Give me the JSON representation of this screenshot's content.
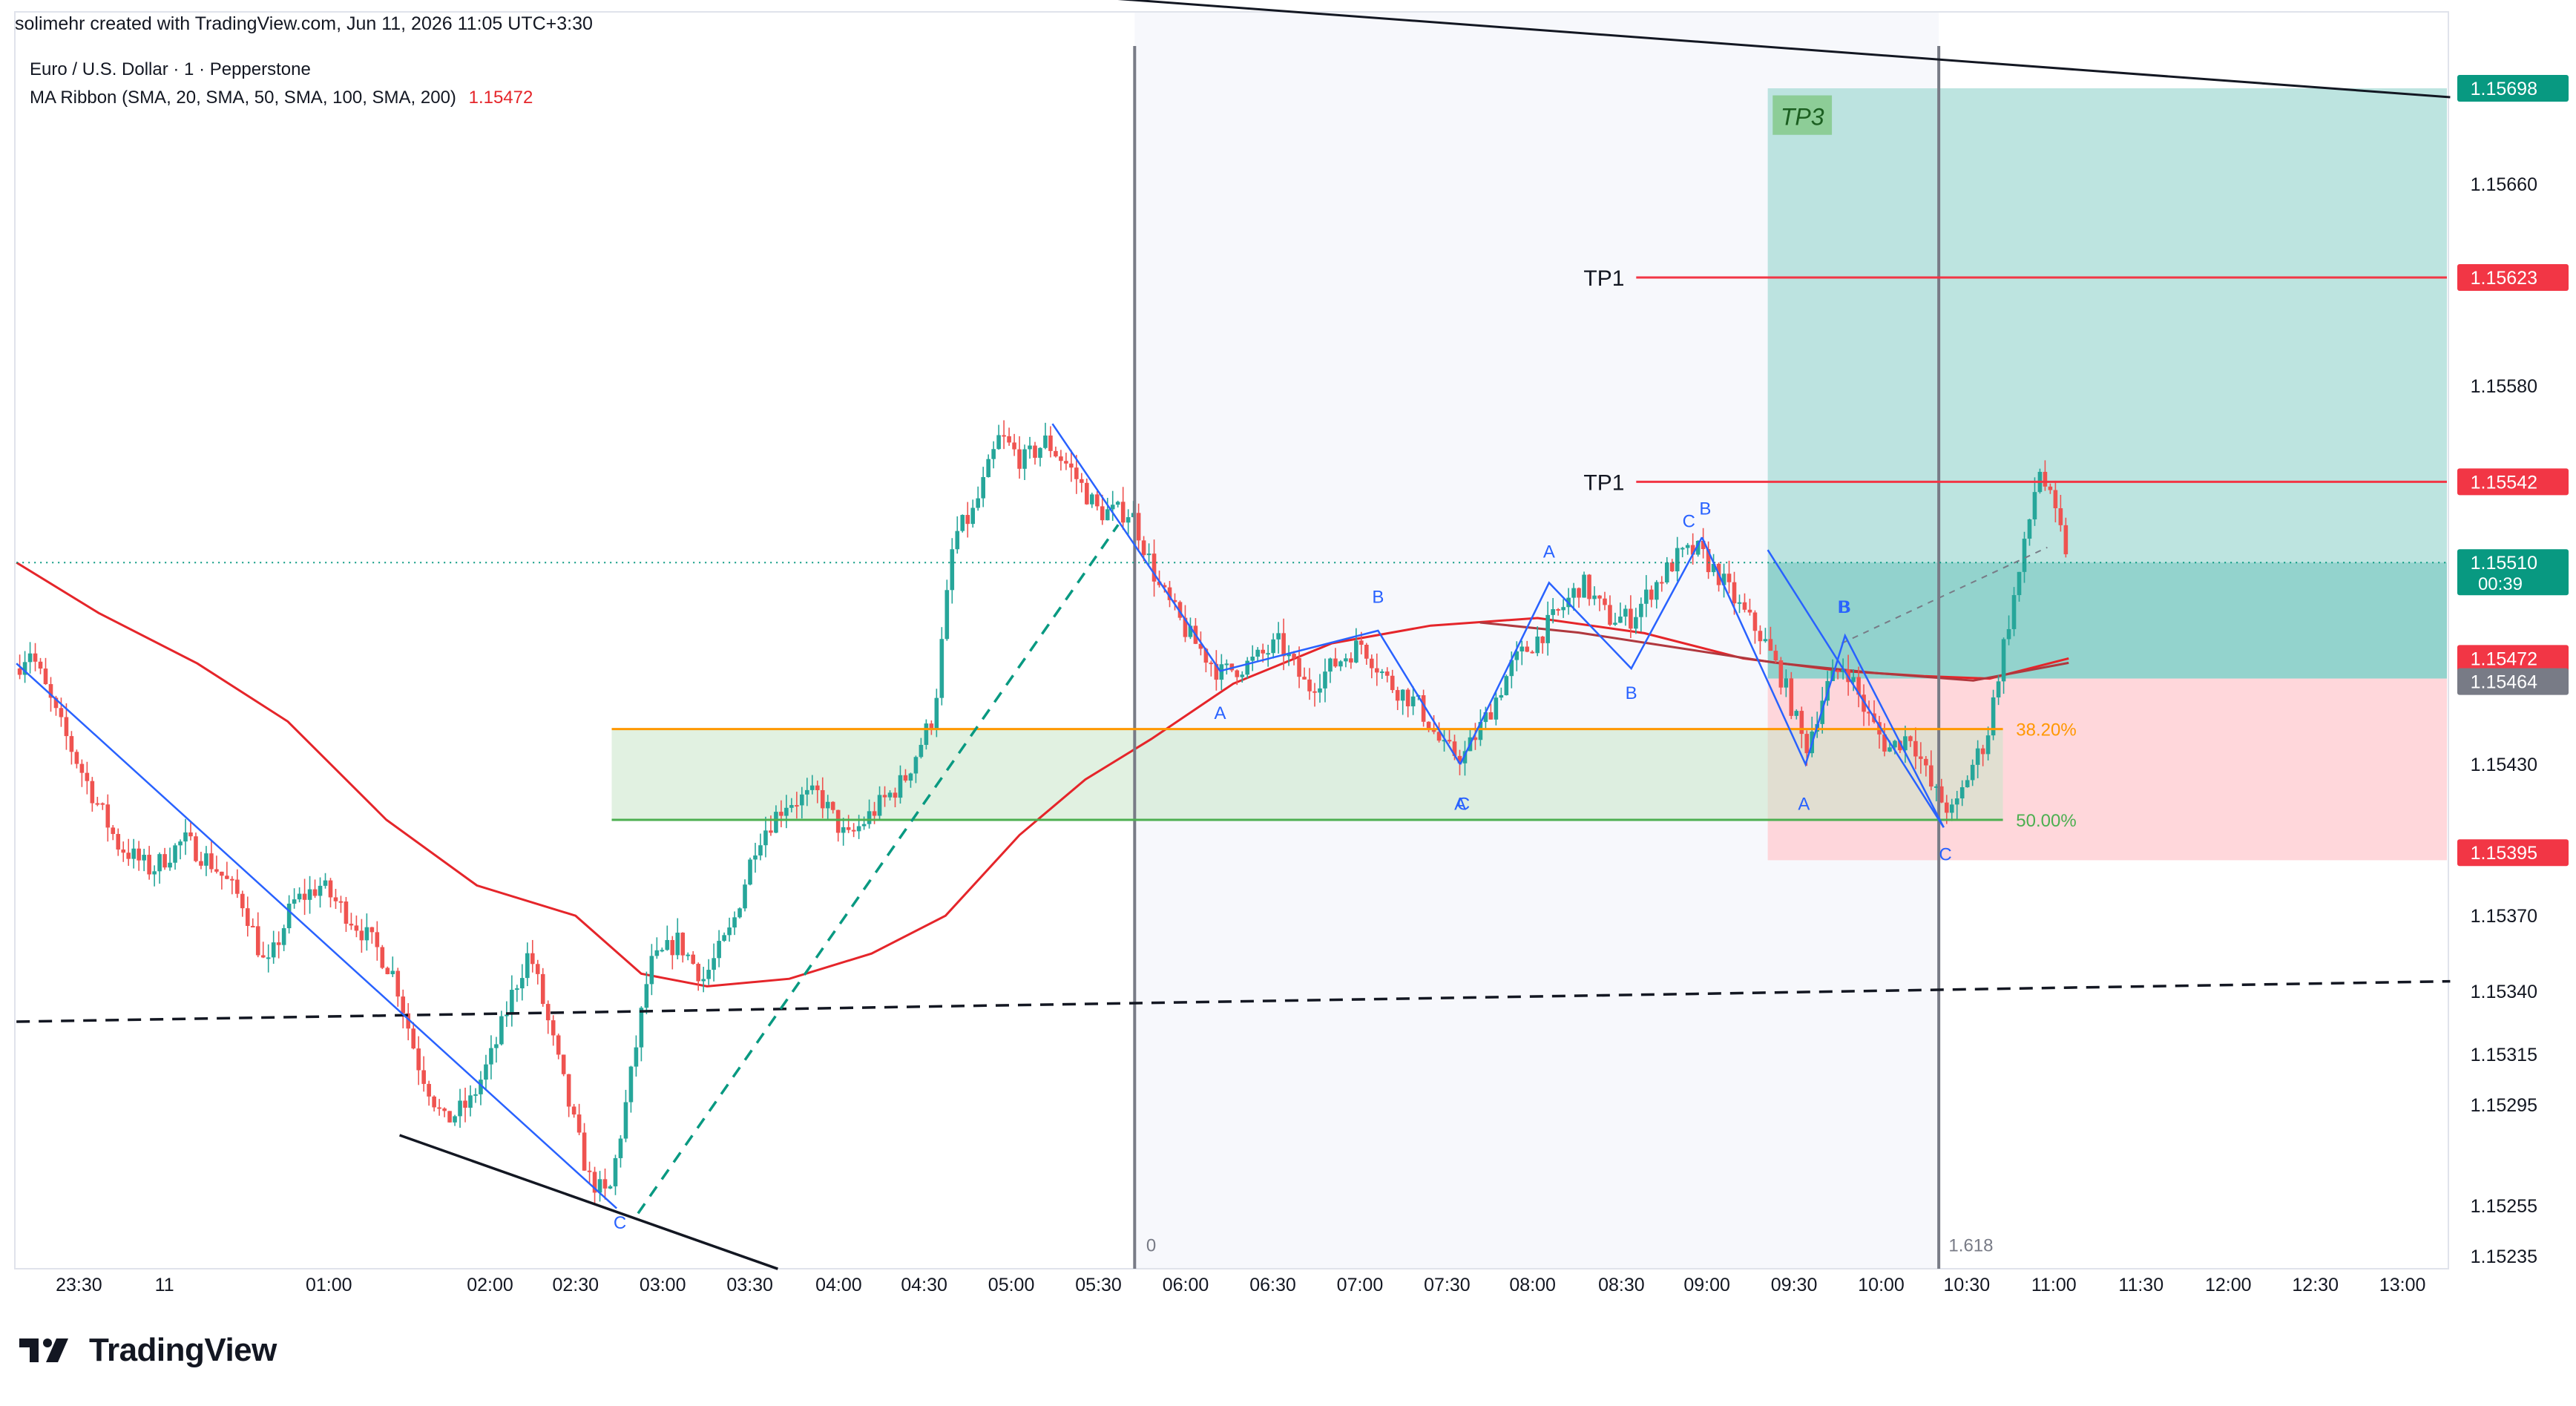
{
  "header": {
    "credit": "solimehr created with TradingView.com, Jun 11, 2026 11:05 UTC+3:30",
    "symbol": "Euro / U.S. Dollar · 1 · Pepperstone",
    "indicator": "MA Ribbon (SMA, 20, SMA, 50, SMA, 100, SMA, 200)",
    "indicator_value": "1.15472"
  },
  "footer": {
    "brand": "TradingView"
  },
  "colors": {
    "up": "#26a69a",
    "down": "#ef5350",
    "ma": "#e5252a",
    "ma200": "#b0383e",
    "wave": "#2962ff",
    "fib_382": "#ff9800",
    "fib_50": "#4caf50",
    "target_zone": "#b2dfdb",
    "stop_zone": "#ffcdd2",
    "tp_line": "#f23645",
    "last_price": "#089981",
    "axis_text": "#131722"
  },
  "chart_data": {
    "type": "candlestick",
    "symbol": "Euro / U.S. Dollar",
    "timeframe": "1",
    "y_axis": {
      "ylim": [
        1.15224,
        1.15712
      ],
      "tick_labels": [
        "1.15660",
        "1.15580",
        "1.15430",
        "1.15370",
        "1.15340",
        "1.15315",
        "1.15295",
        "1.15255",
        "1.15235"
      ]
    },
    "x_axis": {
      "tick_labels": [
        "23:30",
        "11",
        "01:00",
        "02:00",
        "02:30",
        "03:00",
        "03:30",
        "04:00",
        "04:30",
        "05:00",
        "05:30",
        "06:00",
        "06:30",
        "07:00",
        "07:30",
        "08:00",
        "08:30",
        "09:00",
        "09:30",
        "10:00",
        "10:30",
        "11:00",
        "11:30",
        "12:00",
        "12:30",
        "13:00"
      ]
    },
    "price_labels": [
      {
        "value": "1.15698",
        "kind": "tp3"
      },
      {
        "value": "1.15623",
        "kind": "tp"
      },
      {
        "value": "1.15542",
        "kind": "tp"
      },
      {
        "value": "1.15510",
        "kind": "last",
        "countdown": "00:39"
      },
      {
        "value": "1.15472",
        "kind": "ma"
      },
      {
        "value": "1.15464",
        "kind": "entry"
      },
      {
        "value": "1.15395",
        "kind": "stop"
      }
    ],
    "annotations": {
      "tp3": "TP3",
      "tp_lines": [
        {
          "label": "TP1",
          "price": 1.15623
        },
        {
          "label": "TP1",
          "price": 1.15542
        }
      ],
      "fib_levels": [
        {
          "label": "38.20%",
          "price": 1.15444
        },
        {
          "label": "50.00%",
          "price": 1.15408
        }
      ],
      "fib_extension": {
        "start": "0",
        "end": "1.618"
      },
      "wave_labels": [
        "C",
        "A",
        "B",
        "A",
        "C",
        "A",
        "B",
        "B",
        "C",
        "B",
        "B",
        "A",
        "C"
      ]
    },
    "position": {
      "entry": 1.15464,
      "target": 1.15698,
      "stop": 1.15395
    },
    "candle_path": [
      [
        0,
        1.15458
      ],
      [
        18,
        1.15476
      ],
      [
        35,
        1.15448
      ],
      [
        55,
        1.1542
      ],
      [
        72,
        1.15398
      ],
      [
        92,
        1.15388
      ],
      [
        112,
        1.154
      ],
      [
        130,
        1.1539
      ],
      [
        148,
        1.15375
      ],
      [
        162,
        1.15348
      ],
      [
        178,
        1.15375
      ],
      [
        195,
        1.15382
      ],
      [
        212,
        1.1537
      ],
      [
        228,
        1.15358
      ],
      [
        240,
        1.15346
      ],
      [
        254,
        1.15312
      ],
      [
        270,
        1.15288
      ],
      [
        286,
        1.15296
      ],
      [
        300,
        1.15316
      ],
      [
        312,
        1.1534
      ],
      [
        322,
        1.15356
      ],
      [
        334,
        1.15326
      ],
      [
        346,
        1.15295
      ],
      [
        358,
        1.15266
      ],
      [
        370,
        1.15258
      ],
      [
        382,
        1.153
      ],
      [
        395,
        1.1535
      ],
      [
        412,
        1.1536
      ],
      [
        428,
        1.15345
      ],
      [
        445,
        1.15365
      ],
      [
        460,
        1.154
      ],
      [
        478,
        1.15415
      ],
      [
        498,
        1.15418
      ],
      [
        515,
        1.154
      ],
      [
        532,
        1.15412
      ],
      [
        550,
        1.15424
      ],
      [
        568,
        1.1545
      ],
      [
        580,
        1.1552
      ],
      [
        592,
        1.1553
      ],
      [
        608,
        1.1556
      ],
      [
        622,
        1.1555
      ],
      [
        636,
        1.15558
      ],
      [
        650,
        1.15548
      ],
      [
        668,
        1.1553
      ],
      [
        688,
        1.1553
      ],
      [
        705,
        1.155
      ],
      [
        722,
        1.15482
      ],
      [
        742,
        1.15466
      ],
      [
        760,
        1.1547
      ],
      [
        778,
        1.15478
      ],
      [
        795,
        1.1546
      ],
      [
        812,
        1.1547
      ],
      [
        828,
        1.15478
      ],
      [
        845,
        1.15462
      ],
      [
        862,
        1.15454
      ],
      [
        878,
        1.15436
      ],
      [
        890,
        1.15433
      ],
      [
        905,
        1.1545
      ],
      [
        920,
        1.1547
      ],
      [
        935,
        1.1548
      ],
      [
        950,
        1.15492
      ],
      [
        962,
        1.15502
      ],
      [
        978,
        1.15488
      ],
      [
        992,
        1.15488
      ],
      [
        1005,
        1.155
      ],
      [
        1020,
        1.15512
      ],
      [
        1032,
        1.15515
      ],
      [
        1045,
        1.15505
      ],
      [
        1058,
        1.15492
      ],
      [
        1072,
        1.1548
      ],
      [
        1085,
        1.15462
      ],
      [
        1098,
        1.15436
      ],
      [
        1110,
        1.1546
      ],
      [
        1122,
        1.1547
      ],
      [
        1135,
        1.1545
      ],
      [
        1148,
        1.15436
      ],
      [
        1162,
        1.15442
      ],
      [
        1175,
        1.1542
      ],
      [
        1188,
        1.1541
      ],
      [
        1198,
        1.15428
      ],
      [
        1208,
        1.1544
      ],
      [
        1218,
        1.15476
      ],
      [
        1230,
        1.15512
      ],
      [
        1240,
        1.15548
      ],
      [
        1250,
        1.15528
      ],
      [
        1258,
        1.15512
      ]
    ],
    "ma_fast": [
      [
        10,
        1.1551
      ],
      [
        60,
        1.1549
      ],
      [
        120,
        1.1547
      ],
      [
        175,
        1.15447
      ],
      [
        235,
        1.15408
      ],
      [
        290,
        1.15382
      ],
      [
        350,
        1.1537
      ],
      [
        390,
        1.15347
      ],
      [
        430,
        1.15342
      ],
      [
        480,
        1.15345
      ],
      [
        530,
        1.15355
      ],
      [
        575,
        1.1537
      ],
      [
        620,
        1.15402
      ],
      [
        660,
        1.15424
      ],
      [
        700,
        1.1544
      ],
      [
        750,
        1.15462
      ],
      [
        810,
        1.15478
      ],
      [
        870,
        1.15485
      ],
      [
        935,
        1.15488
      ],
      [
        1000,
        1.15482
      ],
      [
        1060,
        1.15472
      ],
      [
        1120,
        1.15467
      ],
      [
        1170,
        1.15465
      ],
      [
        1210,
        1.15464
      ],
      [
        1258,
        1.15472
      ]
    ],
    "ma_slow": [
      [
        900,
        1.15488
      ],
      [
        960,
        1.15484
      ],
      [
        1020,
        1.15478
      ],
      [
        1080,
        1.15472
      ],
      [
        1140,
        1.15468
      ],
      [
        1200,
        1.15465
      ],
      [
        1258,
        1.15472
      ]
    ]
  }
}
